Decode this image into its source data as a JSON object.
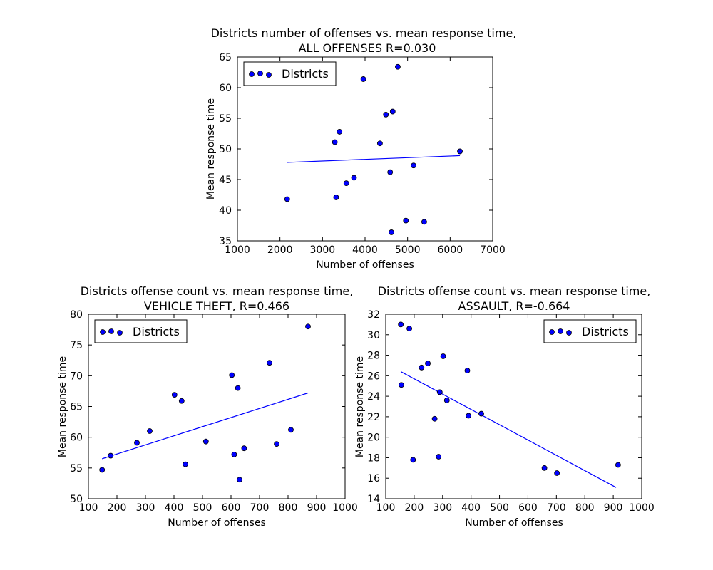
{
  "chart_data": [
    {
      "type": "scatter",
      "title_line1": "Districts number of offenses vs. mean response time,",
      "title_line2": "ALL OFFENSES R=0.030",
      "xlabel": "Number of offenses",
      "ylabel": "Mean response time",
      "xlim": [
        1000,
        7000
      ],
      "ylim": [
        35,
        65
      ],
      "xticks": [
        1000,
        2000,
        3000,
        4000,
        5000,
        6000,
        7000
      ],
      "yticks": [
        35,
        40,
        45,
        50,
        55,
        60,
        65
      ],
      "legend": {
        "label": "Districts",
        "placement": "upper left"
      },
      "marker_color": "#0000ff",
      "line_color": "#0000ff",
      "series": [
        {
          "name": "Districts",
          "points": [
            [
              2170,
              41.8
            ],
            [
              3290,
              51.1
            ],
            [
              3320,
              42.1
            ],
            [
              3400,
              52.8
            ],
            [
              3560,
              44.4
            ],
            [
              3740,
              45.3
            ],
            [
              3960,
              61.4
            ],
            [
              4350,
              50.9
            ],
            [
              4490,
              55.6
            ],
            [
              4590,
              46.2
            ],
            [
              4620,
              36.4
            ],
            [
              4650,
              56.1
            ],
            [
              4770,
              63.4
            ],
            [
              4960,
              38.3
            ],
            [
              5140,
              47.3
            ],
            [
              5390,
              38.1
            ],
            [
              6230,
              49.6
            ]
          ]
        }
      ],
      "fit_line": [
        [
          2170,
          47.8
        ],
        [
          6230,
          48.9
        ]
      ]
    },
    {
      "type": "scatter",
      "title_line1": "Districts offense count vs. mean response time,",
      "title_line2": "VEHICLE THEFT, R=0.466",
      "xlabel": "Number of offenses",
      "ylabel": "Mean response time",
      "xlim": [
        100,
        1000
      ],
      "ylim": [
        50,
        80
      ],
      "xticks": [
        100,
        200,
        300,
        400,
        500,
        600,
        700,
        800,
        900,
        1000
      ],
      "yticks": [
        50,
        55,
        60,
        65,
        70,
        75,
        80
      ],
      "legend": {
        "label": "Districts",
        "placement": "upper left"
      },
      "marker_color": "#0000ff",
      "line_color": "#0000ff",
      "series": [
        {
          "name": "Districts",
          "points": [
            [
              148,
              54.7
            ],
            [
              178,
              57.0
            ],
            [
              270,
              59.1
            ],
            [
              315,
              61.0
            ],
            [
              402,
              66.9
            ],
            [
              427,
              65.9
            ],
            [
              440,
              55.6
            ],
            [
              512,
              59.3
            ],
            [
              603,
              70.1
            ],
            [
              611,
              57.2
            ],
            [
              624,
              68.0
            ],
            [
              630,
              53.1
            ],
            [
              646,
              58.2
            ],
            [
              735,
              72.1
            ],
            [
              760,
              58.9
            ],
            [
              810,
              61.2
            ],
            [
              870,
              78.0
            ]
          ]
        }
      ],
      "fit_line": [
        [
          148,
          56.5
        ],
        [
          870,
          67.2
        ]
      ]
    },
    {
      "type": "scatter",
      "title_line1": "Districts offense count vs. mean response time,",
      "title_line2": "ASSAULT, R=-0.664",
      "xlabel": "Number of offenses",
      "ylabel": "Mean response time",
      "xlim": [
        100,
        1000
      ],
      "ylim": [
        14,
        32
      ],
      "xticks": [
        100,
        200,
        300,
        400,
        500,
        600,
        700,
        800,
        900,
        1000
      ],
      "yticks": [
        14,
        16,
        18,
        20,
        22,
        24,
        26,
        28,
        30,
        32
      ],
      "legend": {
        "label": "Districts",
        "placement": "upper right"
      },
      "marker_color": "#0000ff",
      "line_color": "#0000ff",
      "series": [
        {
          "name": "Districts",
          "points": [
            [
              153,
              31.0
            ],
            [
              155,
              25.1
            ],
            [
              183,
              30.6
            ],
            [
              196,
              17.8
            ],
            [
              226,
              26.8
            ],
            [
              248,
              27.2
            ],
            [
              272,
              21.8
            ],
            [
              286,
              18.1
            ],
            [
              290,
              24.4
            ],
            [
              302,
              27.9
            ],
            [
              315,
              23.6
            ],
            [
              387,
              26.5
            ],
            [
              391,
              22.1
            ],
            [
              436,
              22.3
            ],
            [
              658,
              17.0
            ],
            [
              702,
              16.5
            ],
            [
              917,
              17.3
            ]
          ]
        }
      ],
      "fit_line": [
        [
          153,
          26.4
        ],
        [
          910,
          15.1
        ]
      ]
    }
  ]
}
